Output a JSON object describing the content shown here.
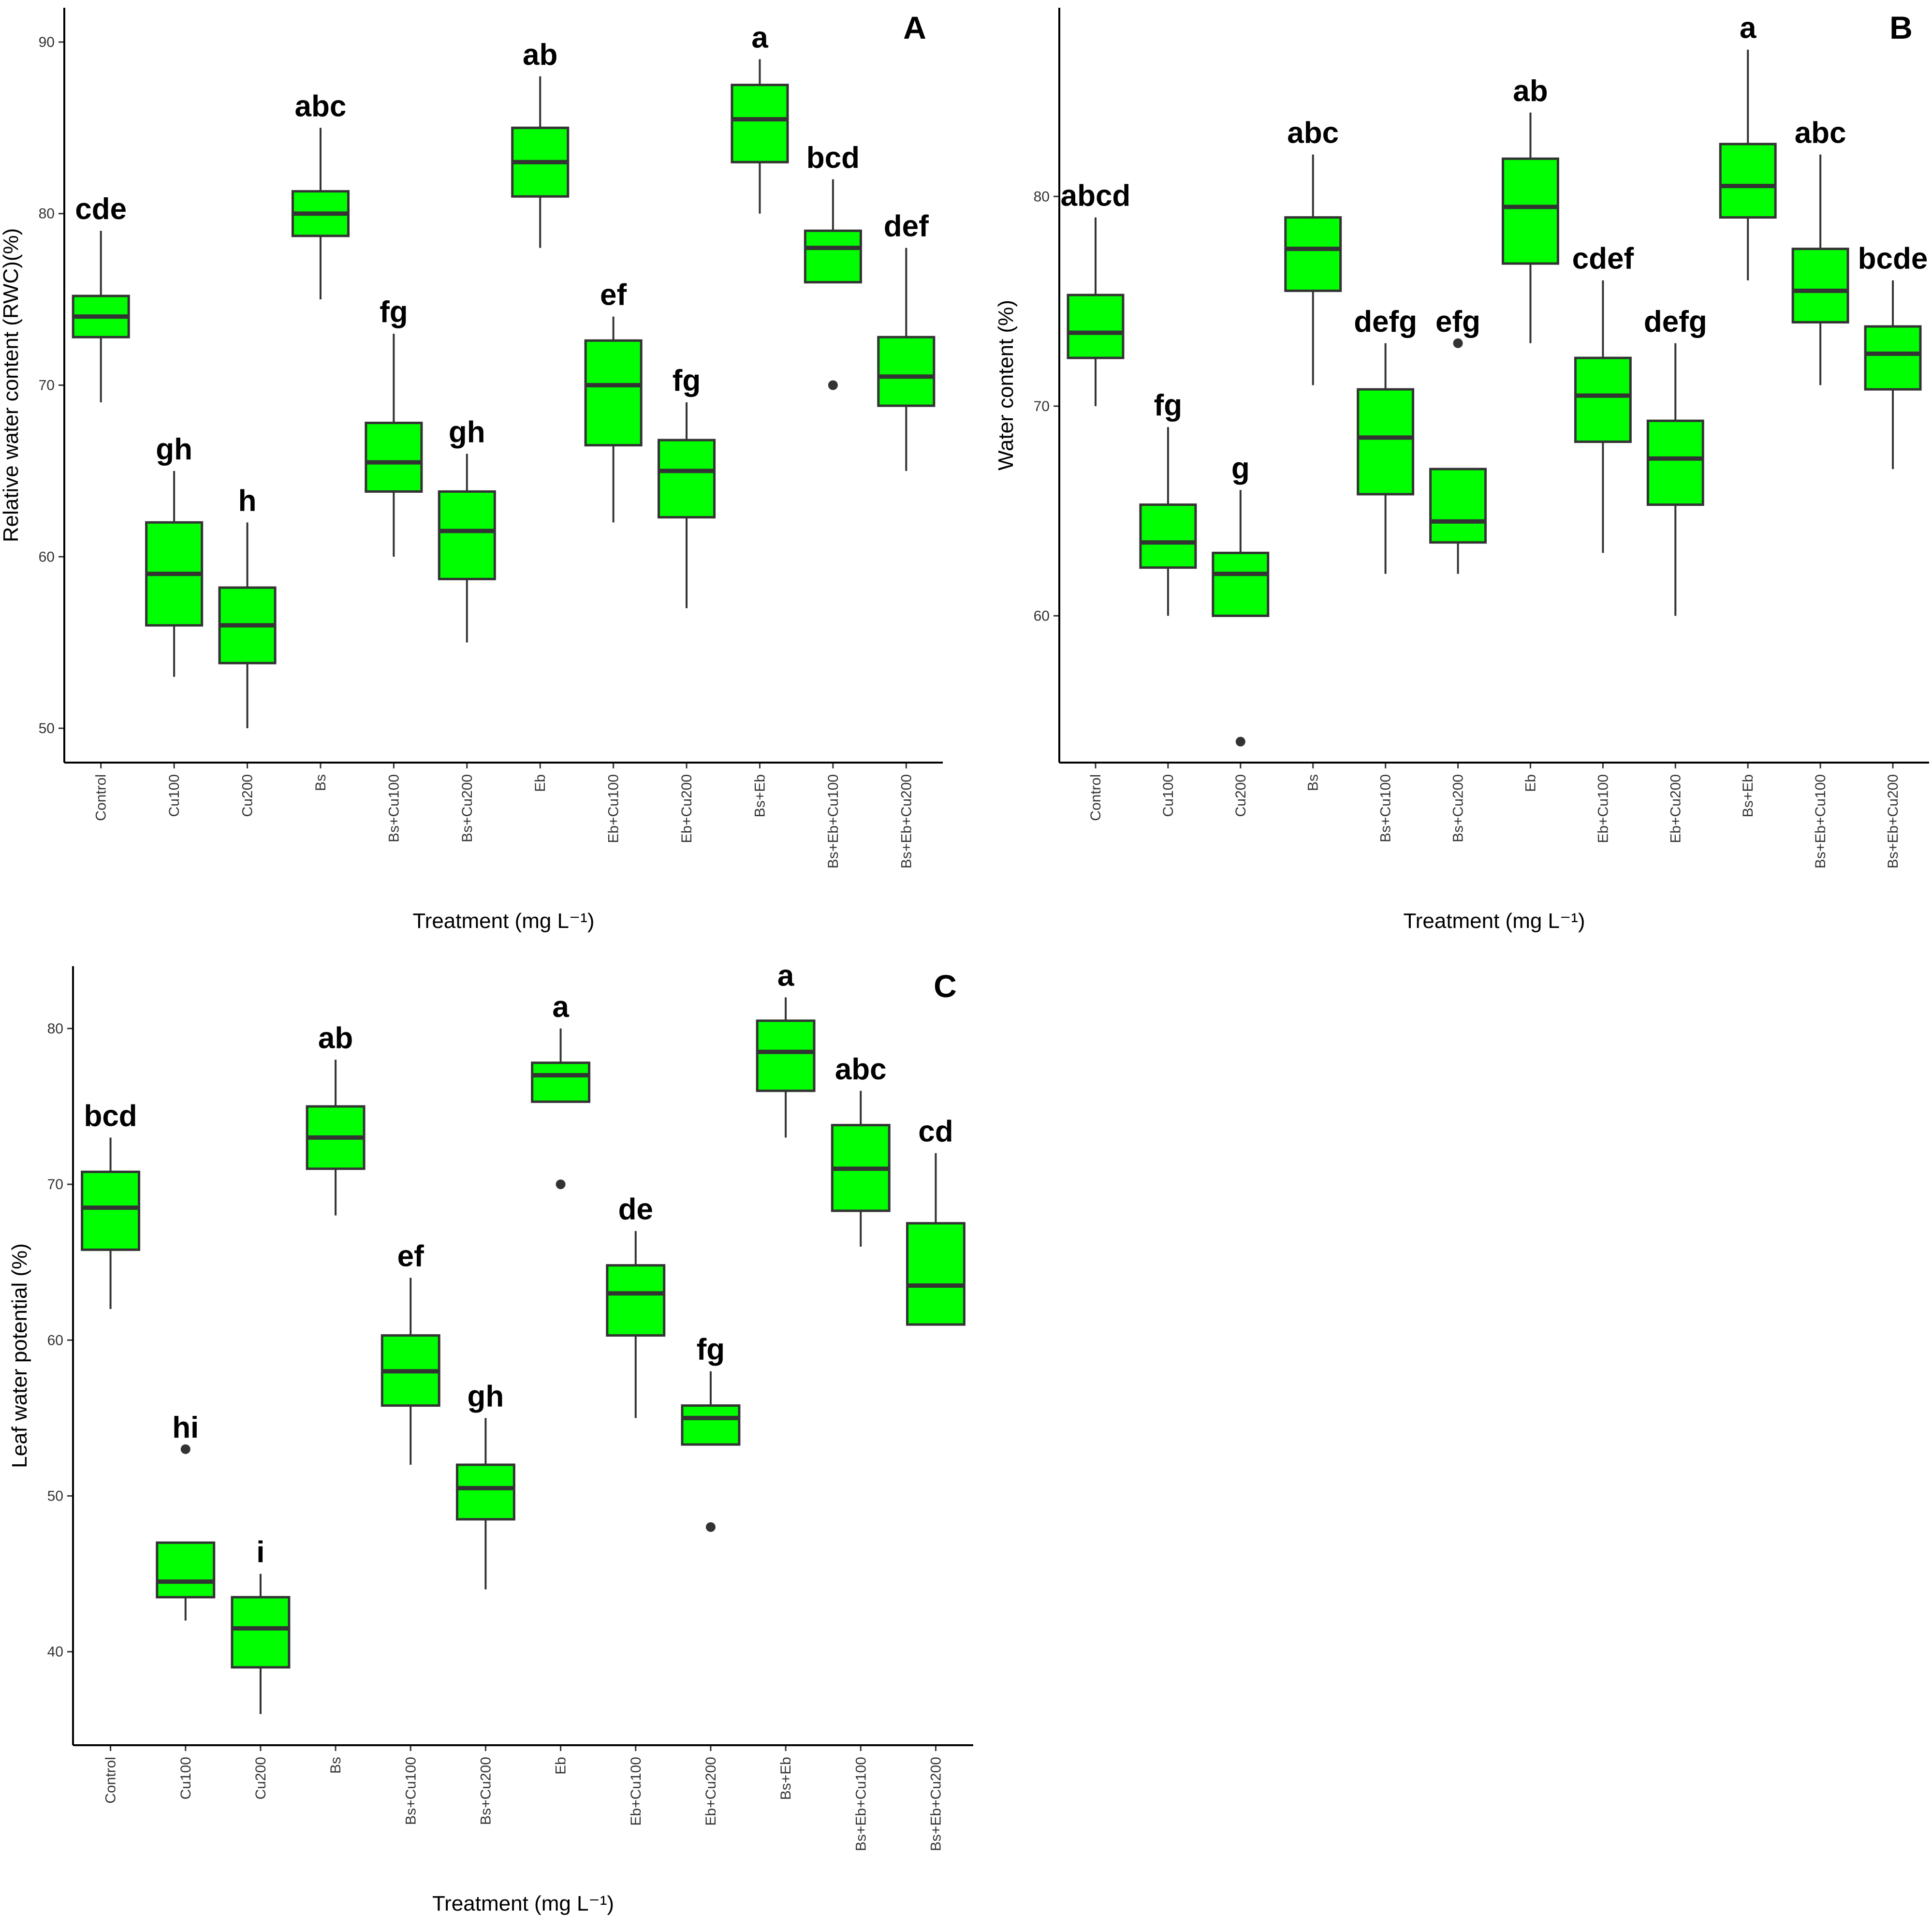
{
  "figure": {
    "box_fill": "#00ff00",
    "box_stroke": "#333333",
    "outlier_color": "#333333"
  },
  "chart_data": [
    {
      "type": "boxplot",
      "panel": "A",
      "xlabel": "Treatment (mg L⁻¹)",
      "ylabel": "Relative water content (RWC)(%)",
      "ylim": [
        48,
        92
      ],
      "yticks": [
        50,
        60,
        70,
        80,
        90
      ],
      "grid": false,
      "categories": [
        "Control",
        "Cu100",
        "Cu200",
        "Bs",
        "Bs+Cu100",
        "Bs+Cu200",
        "Eb",
        "Eb+Cu100",
        "Eb+Cu200",
        "Bs+Eb",
        "Bs+Eb+Cu100",
        "Bs+Eb+Cu200"
      ],
      "boxes": [
        {
          "min": 69,
          "q1": 72.8,
          "median": 74,
          "q3": 75.2,
          "max": 79,
          "outliers": [],
          "letter": "cde"
        },
        {
          "min": 53,
          "q1": 56,
          "median": 59,
          "q3": 62,
          "max": 65,
          "outliers": [],
          "letter": "gh"
        },
        {
          "min": 50,
          "q1": 53.8,
          "median": 56,
          "q3": 58.2,
          "max": 62,
          "outliers": [],
          "letter": "h"
        },
        {
          "min": 75,
          "q1": 78.7,
          "median": 80,
          "q3": 81.3,
          "max": 85,
          "outliers": [],
          "letter": "abc"
        },
        {
          "min": 60,
          "q1": 63.8,
          "median": 65.5,
          "q3": 67.8,
          "max": 73,
          "outliers": [],
          "letter": "fg"
        },
        {
          "min": 55,
          "q1": 58.7,
          "median": 61.5,
          "q3": 63.8,
          "max": 66,
          "outliers": [],
          "letter": "gh"
        },
        {
          "min": 78,
          "q1": 81,
          "median": 83,
          "q3": 85,
          "max": 88,
          "outliers": [],
          "letter": "ab"
        },
        {
          "min": 62,
          "q1": 66.5,
          "median": 70,
          "q3": 72.6,
          "max": 74,
          "outliers": [],
          "letter": "ef"
        },
        {
          "min": 57,
          "q1": 62.3,
          "median": 65,
          "q3": 66.8,
          "max": 69,
          "outliers": [],
          "letter": "fg"
        },
        {
          "min": 80,
          "q1": 83,
          "median": 85.5,
          "q3": 87.5,
          "max": 89,
          "outliers": [],
          "letter": "a"
        },
        {
          "min": 76,
          "q1": 76,
          "median": 78,
          "q3": 79,
          "max": 82,
          "outliers": [
            70
          ],
          "letter": "bcd"
        },
        {
          "min": 65,
          "q1": 68.8,
          "median": 70.5,
          "q3": 72.8,
          "max": 78,
          "outliers": [],
          "letter": "def"
        }
      ]
    },
    {
      "type": "boxplot",
      "panel": "B",
      "xlabel": "Treatment (mg L⁻¹)",
      "ylabel": "Water content (%)",
      "ylim": [
        53,
        89
      ],
      "yticks": [
        60,
        70,
        80
      ],
      "grid": false,
      "categories": [
        "Control",
        "Cu100",
        "Cu200",
        "Bs",
        "Bs+Cu100",
        "Bs+Cu200",
        "Eb",
        "Eb+Cu100",
        "Eb+Cu200",
        "Bs+Eb",
        "Bs+Eb+Cu100",
        "Bs+Eb+Cu200"
      ],
      "boxes": [
        {
          "min": 70,
          "q1": 72.3,
          "median": 73.5,
          "q3": 75.3,
          "max": 79,
          "outliers": [],
          "letter": "abcd"
        },
        {
          "min": 60,
          "q1": 62.3,
          "median": 63.5,
          "q3": 65.3,
          "max": 69,
          "outliers": [],
          "letter": "fg"
        },
        {
          "min": 60,
          "q1": 60,
          "median": 62,
          "q3": 63,
          "max": 66,
          "outliers": [
            54
          ],
          "letter": "g"
        },
        {
          "min": 71,
          "q1": 75.5,
          "median": 77.5,
          "q3": 79,
          "max": 82,
          "outliers": [],
          "letter": "abc"
        },
        {
          "min": 62,
          "q1": 65.8,
          "median": 68.5,
          "q3": 70.8,
          "max": 73,
          "outliers": [],
          "letter": "defg"
        },
        {
          "min": 62,
          "q1": 63.5,
          "median": 64.5,
          "q3": 67,
          "max": 67,
          "outliers": [
            73
          ],
          "letter": "efg"
        },
        {
          "min": 73,
          "q1": 76.8,
          "median": 79.5,
          "q3": 81.8,
          "max": 84,
          "outliers": [],
          "letter": "ab"
        },
        {
          "min": 63,
          "q1": 68.3,
          "median": 70.5,
          "q3": 72.3,
          "max": 76,
          "outliers": [],
          "letter": "cdef"
        },
        {
          "min": 60,
          "q1": 65.3,
          "median": 67.5,
          "q3": 69.3,
          "max": 73,
          "outliers": [],
          "letter": "defg"
        },
        {
          "min": 76,
          "q1": 79,
          "median": 80.5,
          "q3": 82.5,
          "max": 87,
          "outliers": [],
          "letter": "a"
        },
        {
          "min": 71,
          "q1": 74,
          "median": 75.5,
          "q3": 77.5,
          "max": 82,
          "outliers": [],
          "letter": "abc"
        },
        {
          "min": 67,
          "q1": 70.8,
          "median": 72.5,
          "q3": 73.8,
          "max": 76,
          "outliers": [],
          "letter": "bcde"
        }
      ]
    },
    {
      "type": "boxplot",
      "panel": "C",
      "xlabel": "Treatment (mg L⁻¹)",
      "ylabel": "Leaf water potential (%)",
      "ylim": [
        34,
        84
      ],
      "yticks": [
        40,
        50,
        60,
        70,
        80
      ],
      "grid": false,
      "categories": [
        "Control",
        "Cu100",
        "Cu200",
        "Bs",
        "Bs+Cu100",
        "Bs+Cu200",
        "Eb",
        "Eb+Cu100",
        "Eb+Cu200",
        "Bs+Eb",
        "Bs+Eb+Cu100",
        "Bs+Eb+Cu200"
      ],
      "boxes": [
        {
          "min": 62,
          "q1": 65.8,
          "median": 68.5,
          "q3": 70.8,
          "max": 73,
          "outliers": [],
          "letter": "bcd"
        },
        {
          "min": 42,
          "q1": 43.5,
          "median": 44.5,
          "q3": 47,
          "max": 47,
          "outliers": [
            53
          ],
          "letter": "hi"
        },
        {
          "min": 36,
          "q1": 39,
          "median": 41.5,
          "q3": 43.5,
          "max": 45,
          "outliers": [],
          "letter": "i"
        },
        {
          "min": 68,
          "q1": 71,
          "median": 73,
          "q3": 75,
          "max": 78,
          "outliers": [],
          "letter": "ab"
        },
        {
          "min": 52,
          "q1": 55.8,
          "median": 58,
          "q3": 60.3,
          "max": 64,
          "outliers": [],
          "letter": "ef"
        },
        {
          "min": 44,
          "q1": 48.5,
          "median": 50.5,
          "q3": 52,
          "max": 55,
          "outliers": [],
          "letter": "gh"
        },
        {
          "min": 75.3,
          "q1": 75.3,
          "median": 77,
          "q3": 77.8,
          "max": 80,
          "outliers": [
            70
          ],
          "letter": "a"
        },
        {
          "min": 55,
          "q1": 60.3,
          "median": 63,
          "q3": 64.8,
          "max": 67,
          "outliers": [],
          "letter": "de"
        },
        {
          "min": 53.3,
          "q1": 53.3,
          "median": 55,
          "q3": 55.8,
          "max": 58,
          "outliers": [
            48
          ],
          "letter": "fg"
        },
        {
          "min": 73,
          "q1": 76,
          "median": 78.5,
          "q3": 80.5,
          "max": 82,
          "outliers": [],
          "letter": "a"
        },
        {
          "min": 66,
          "q1": 68.3,
          "median": 71,
          "q3": 73.8,
          "max": 76,
          "outliers": [],
          "letter": "abc"
        },
        {
          "min": 61,
          "q1": 61,
          "median": 63.5,
          "q3": 67.5,
          "max": 72,
          "outliers": [],
          "letter": "cd"
        }
      ]
    }
  ]
}
